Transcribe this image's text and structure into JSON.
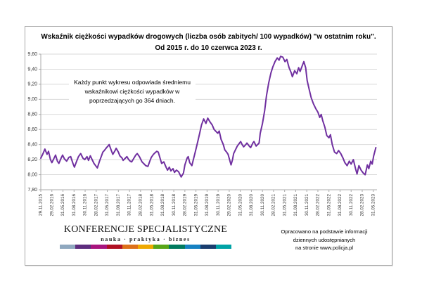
{
  "title": {
    "line1": "Wskaźnik ciężkości wypadków drogowych (liczba osób zabitych/ 100 wypadków) \"w ostatnim roku\".",
    "line2": "Od 2015 r. do 10 czerwca 2023 r."
  },
  "annotation": {
    "text": "Każdy punkt wykresu odpowiada średniemu wskaźnikowi ciężkości wypadków w poprzedzających go 364 dniach."
  },
  "source_note": {
    "line1": "Opracowano na podstawie informacji",
    "line2": "dziennych udostępnianych",
    "line3": "na stronie www.policja.pl"
  },
  "logo": {
    "name": "KONFERENCJE SPECJALISTYCZNE",
    "tagline": "nauka · praktyka · biznes",
    "bar_colors": [
      "#8FA8BF",
      "#5E2D7E",
      "#A8147E",
      "#B01023",
      "#DD7019",
      "#EFA900",
      "#58A618",
      "#007A5E",
      "#1781C2",
      "#1A3E6F",
      "#00A3A6"
    ]
  },
  "chart_data": {
    "type": "line",
    "title": "Wskaźnik ciężkości wypadków drogowych (liczba osób zabitych/ 100 wypadków) \"w ostatnim roku\". Od 2015 r. do 10 czerwca 2023 r.",
    "ylabel": "",
    "xlabel": "",
    "y_domain": [
      7.8,
      9.6
    ],
    "y_ticks": [
      7.8,
      8.0,
      8.2,
      8.4,
      8.6,
      8.8,
      9.0,
      9.2,
      9.4,
      9.6
    ],
    "x_domain_months": [
      0,
      91
    ],
    "x_tick_interval_months": 3,
    "x_tick_labels": [
      "29.11.2015",
      "29.02.2016",
      "31.05.2016",
      "31.08.2016",
      "30.11.2016",
      "28.02.2017",
      "31.05.2017",
      "31.08.2017",
      "30.11.2017",
      "28.02.2018",
      "31.05.2018",
      "31.08.2018",
      "30.11.2018",
      "28.02.2019",
      "31.05.2019",
      "31.08.2019",
      "30.11.2019",
      "29.02.2020",
      "31.05.2020",
      "31.08.2020",
      "30.11.2020",
      "28.02.2021",
      "31.05.2021",
      "31.08.2021",
      "30.11.2021",
      "28.02.2022",
      "31.05.2022",
      "31.08.2022",
      "30.11.2022",
      "28.02.2023",
      "31.05.2023"
    ],
    "line_color": "#7030A0",
    "grid_color": "#D9D9D9",
    "axis_color": "#ABABAB",
    "tick_label_color": "#333333",
    "legend": "none",
    "grid": "horizontal-only",
    "points": [
      [
        0,
        8.22
      ],
      [
        0.6,
        8.28
      ],
      [
        1.1,
        8.34
      ],
      [
        1.7,
        8.27
      ],
      [
        2.1,
        8.31
      ],
      [
        2.6,
        8.2
      ],
      [
        3,
        8.16
      ],
      [
        3.6,
        8.22
      ],
      [
        4,
        8.26
      ],
      [
        4.5,
        8.18
      ],
      [
        4.9,
        8.15
      ],
      [
        5.5,
        8.22
      ],
      [
        5.9,
        8.26
      ],
      [
        6.4,
        8.21
      ],
      [
        7,
        8.18
      ],
      [
        7.6,
        8.23
      ],
      [
        8.1,
        8.24
      ],
      [
        8.7,
        8.15
      ],
      [
        9.1,
        8.1
      ],
      [
        9.7,
        8.18
      ],
      [
        10.2,
        8.24
      ],
      [
        10.8,
        8.28
      ],
      [
        11.4,
        8.22
      ],
      [
        11.9,
        8.2
      ],
      [
        12.5,
        8.24
      ],
      [
        12.9,
        8.19
      ],
      [
        13.4,
        8.25
      ],
      [
        14,
        8.19
      ],
      [
        14.4,
        8.15
      ],
      [
        15,
        8.11
      ],
      [
        15.3,
        8.09
      ],
      [
        15.9,
        8.18
      ],
      [
        16.5,
        8.26
      ],
      [
        16.8,
        8.3
      ],
      [
        17.2,
        8.32
      ],
      [
        17.8,
        8.36
      ],
      [
        18.2,
        8.38
      ],
      [
        18.5,
        8.4
      ],
      [
        19.1,
        8.32
      ],
      [
        19.5,
        8.27
      ],
      [
        20.1,
        8.32
      ],
      [
        20.4,
        8.35
      ],
      [
        21,
        8.3
      ],
      [
        21.4,
        8.25
      ],
      [
        22,
        8.22
      ],
      [
        22.3,
        8.19
      ],
      [
        22.9,
        8.22
      ],
      [
        23.3,
        8.24
      ],
      [
        23.8,
        8.2
      ],
      [
        24.2,
        8.18
      ],
      [
        24.6,
        8.17
      ],
      [
        25.2,
        8.22
      ],
      [
        25.7,
        8.26
      ],
      [
        26.1,
        8.28
      ],
      [
        26.7,
        8.24
      ],
      [
        27.1,
        8.2
      ],
      [
        27.4,
        8.17
      ],
      [
        28,
        8.14
      ],
      [
        28.4,
        8.12
      ],
      [
        29,
        8.11
      ],
      [
        29.5,
        8.18
      ],
      [
        29.9,
        8.23
      ],
      [
        30.5,
        8.27
      ],
      [
        30.9,
        8.29
      ],
      [
        31.4,
        8.31
      ],
      [
        31.8,
        8.3
      ],
      [
        32.4,
        8.2
      ],
      [
        32.7,
        8.15
      ],
      [
        33.3,
        8.17
      ],
      [
        33.9,
        8.1
      ],
      [
        34.3,
        8.06
      ],
      [
        34.8,
        8.1
      ],
      [
        35.2,
        8.05
      ],
      [
        35.8,
        8.08
      ],
      [
        36.2,
        8.03
      ],
      [
        36.7,
        8.06
      ],
      [
        37.3,
        8.04
      ],
      [
        37.7,
        8.0
      ],
      [
        38,
        7.97
      ],
      [
        38.6,
        8.02
      ],
      [
        39,
        8.13
      ],
      [
        39.6,
        8.22
      ],
      [
        39.9,
        8.24
      ],
      [
        40.3,
        8.16
      ],
      [
        40.9,
        8.12
      ],
      [
        41.3,
        8.2
      ],
      [
        41.8,
        8.3
      ],
      [
        42.4,
        8.42
      ],
      [
        43,
        8.55
      ],
      [
        43.5,
        8.66
      ],
      [
        44.1,
        8.74
      ],
      [
        44.7,
        8.68
      ],
      [
        45.2,
        8.75
      ],
      [
        45.8,
        8.7
      ],
      [
        46.4,
        8.66
      ],
      [
        46.9,
        8.6
      ],
      [
        47.5,
        8.57
      ],
      [
        47.9,
        8.55
      ],
      [
        48.3,
        8.58
      ],
      [
        48.8,
        8.47
      ],
      [
        49.4,
        8.4
      ],
      [
        49.8,
        8.33
      ],
      [
        50.3,
        8.3
      ],
      [
        50.7,
        8.27
      ],
      [
        51.1,
        8.2
      ],
      [
        51.5,
        8.13
      ],
      [
        51.9,
        8.2
      ],
      [
        52.2,
        8.28
      ],
      [
        52.8,
        8.34
      ],
      [
        53.2,
        8.38
      ],
      [
        53.8,
        8.42
      ],
      [
        54.1,
        8.44
      ],
      [
        54.5,
        8.4
      ],
      [
        54.9,
        8.37
      ],
      [
        55.5,
        8.4
      ],
      [
        55.8,
        8.42
      ],
      [
        56.4,
        8.38
      ],
      [
        56.8,
        8.36
      ],
      [
        57.4,
        8.42
      ],
      [
        57.7,
        8.44
      ],
      [
        58.3,
        8.38
      ],
      [
        58.7,
        8.4
      ],
      [
        59.1,
        8.42
      ],
      [
        59.4,
        8.55
      ],
      [
        60,
        8.68
      ],
      [
        60.6,
        8.85
      ],
      [
        61.1,
        9.05
      ],
      [
        61.7,
        9.22
      ],
      [
        62.3,
        9.35
      ],
      [
        62.8,
        9.43
      ],
      [
        63.4,
        9.5
      ],
      [
        64,
        9.55
      ],
      [
        64.5,
        9.52
      ],
      [
        64.9,
        9.57
      ],
      [
        65.5,
        9.56
      ],
      [
        66.1,
        9.5
      ],
      [
        66.6,
        9.53
      ],
      [
        67.2,
        9.42
      ],
      [
        67.8,
        9.35
      ],
      [
        68.1,
        9.3
      ],
      [
        68.7,
        9.38
      ],
      [
        69.3,
        9.34
      ],
      [
        69.8,
        9.42
      ],
      [
        70.2,
        9.37
      ],
      [
        70.8,
        9.45
      ],
      [
        71.2,
        9.5
      ],
      [
        71.7,
        9.42
      ],
      [
        72.1,
        9.25
      ],
      [
        72.7,
        9.12
      ],
      [
        73.2,
        9.02
      ],
      [
        73.8,
        8.94
      ],
      [
        74.4,
        8.88
      ],
      [
        75,
        8.83
      ],
      [
        75.5,
        8.76
      ],
      [
        75.9,
        8.8
      ],
      [
        76.3,
        8.72
      ],
      [
        76.9,
        8.63
      ],
      [
        77.4,
        8.52
      ],
      [
        78,
        8.49
      ],
      [
        78.4,
        8.53
      ],
      [
        78.9,
        8.4
      ],
      [
        79.5,
        8.3
      ],
      [
        80.1,
        8.28
      ],
      [
        80.6,
        8.32
      ],
      [
        81.2,
        8.28
      ],
      [
        81.8,
        8.22
      ],
      [
        82.3,
        8.16
      ],
      [
        82.9,
        8.12
      ],
      [
        83.5,
        8.18
      ],
      [
        84,
        8.14
      ],
      [
        84.6,
        8.2
      ],
      [
        85.2,
        8.08
      ],
      [
        85.6,
        8.01
      ],
      [
        86.1,
        8.12
      ],
      [
        86.7,
        8.06
      ],
      [
        87.3,
        8.02
      ],
      [
        87.8,
        8.0
      ],
      [
        88.4,
        8.13
      ],
      [
        88.8,
        8.08
      ],
      [
        89.3,
        8.18
      ],
      [
        89.7,
        8.14
      ],
      [
        90.1,
        8.25
      ],
      [
        90.7,
        8.36
      ]
    ]
  }
}
